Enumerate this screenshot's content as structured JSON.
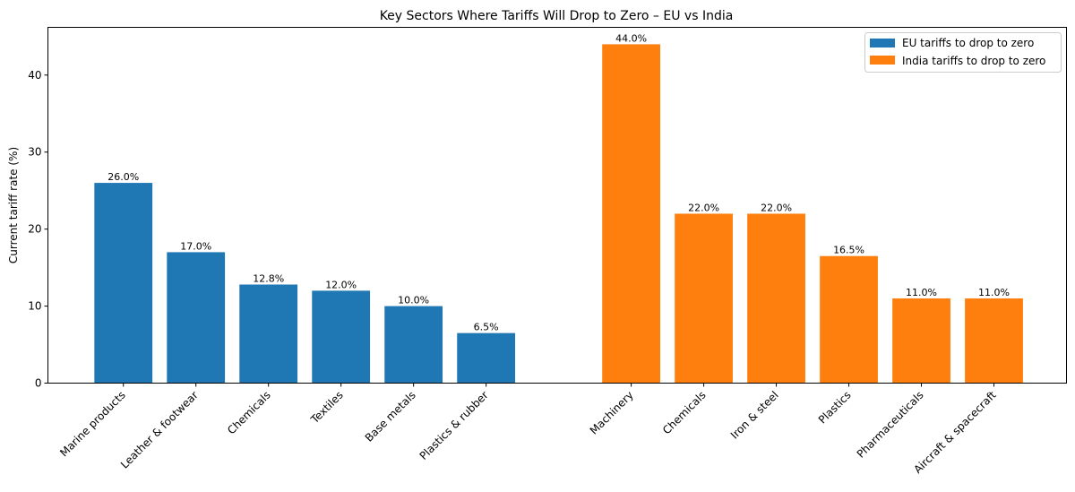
{
  "chart_data": {
    "type": "bar",
    "title": "Key Sectors Where Tariffs Will Drop to Zero – EU vs India",
    "xlabel": "",
    "ylabel": "Current tariff rate (%)",
    "ylim": [
      0,
      46.2
    ],
    "yticks": [
      0,
      10,
      20,
      30,
      40
    ],
    "grid": false,
    "legend_position": "top-right",
    "series": [
      {
        "name": "EU tariffs to drop to zero",
        "color": "#1f77b4",
        "categories": [
          "Marine products",
          "Leather & footwear",
          "Chemicals",
          "Textiles",
          "Base metals",
          "Plastics & rubber"
        ],
        "values": [
          26.0,
          17.0,
          12.8,
          12.0,
          10.0,
          6.5
        ],
        "labels": [
          "26.0%",
          "17.0%",
          "12.8%",
          "12.0%",
          "10.0%",
          "6.5%"
        ]
      },
      {
        "name": "India tariffs to drop to zero",
        "color": "#ff7f0e",
        "categories": [
          "Machinery",
          "Chemicals",
          "Iron & steel",
          "Plastics",
          "Pharmaceuticals",
          "Aircraft & spacecraft"
        ],
        "values": [
          44.0,
          22.0,
          22.0,
          16.5,
          11.0,
          11.0
        ],
        "labels": [
          "44.0%",
          "22.0%",
          "22.0%",
          "16.5%",
          "11.0%",
          "11.0%"
        ]
      }
    ]
  }
}
